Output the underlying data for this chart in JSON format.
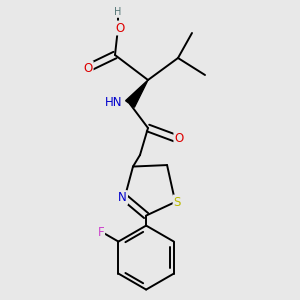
{
  "bg_color": "#e8e8e8",
  "atom_colors": {
    "C": "#000000",
    "O": "#dd0000",
    "N": "#0000cc",
    "S": "#bbbb00",
    "F": "#cc44cc",
    "H": "#557777"
  },
  "figsize": [
    3.0,
    3.0
  ],
  "dpi": 100,
  "lw": 1.4,
  "fs": 8.5
}
